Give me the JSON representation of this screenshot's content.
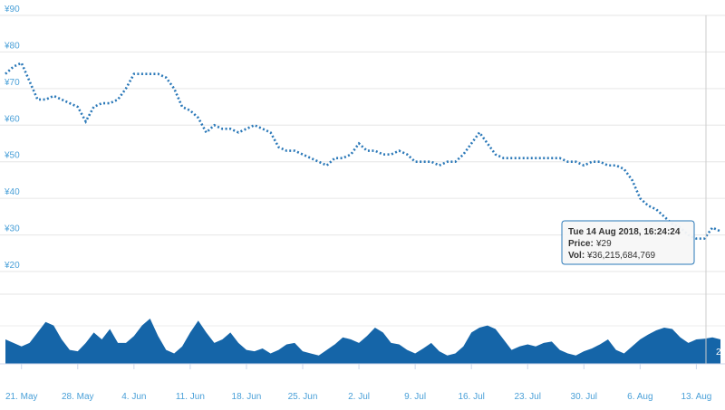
{
  "chart_data": {
    "type": "price-volume",
    "x": [
      "2018-05-19",
      "2018-05-20",
      "2018-05-21",
      "2018-05-22",
      "2018-05-23",
      "2018-05-24",
      "2018-05-25",
      "2018-05-26",
      "2018-05-27",
      "2018-05-28",
      "2018-05-29",
      "2018-05-30",
      "2018-05-31",
      "2018-06-01",
      "2018-06-02",
      "2018-06-03",
      "2018-06-04",
      "2018-06-05",
      "2018-06-06",
      "2018-06-07",
      "2018-06-08",
      "2018-06-09",
      "2018-06-10",
      "2018-06-11",
      "2018-06-12",
      "2018-06-13",
      "2018-06-14",
      "2018-06-15",
      "2018-06-16",
      "2018-06-17",
      "2018-06-18",
      "2018-06-19",
      "2018-06-20",
      "2018-06-21",
      "2018-06-22",
      "2018-06-23",
      "2018-06-24",
      "2018-06-25",
      "2018-06-26",
      "2018-06-27",
      "2018-06-28",
      "2018-06-29",
      "2018-06-30",
      "2018-07-01",
      "2018-07-02",
      "2018-07-03",
      "2018-07-04",
      "2018-07-05",
      "2018-07-06",
      "2018-07-07",
      "2018-07-08",
      "2018-07-09",
      "2018-07-10",
      "2018-07-11",
      "2018-07-12",
      "2018-07-13",
      "2018-07-14",
      "2018-07-15",
      "2018-07-16",
      "2018-07-17",
      "2018-07-18",
      "2018-07-19",
      "2018-07-20",
      "2018-07-21",
      "2018-07-22",
      "2018-07-23",
      "2018-07-24",
      "2018-07-25",
      "2018-07-26",
      "2018-07-27",
      "2018-07-28",
      "2018-07-29",
      "2018-07-30",
      "2018-07-31",
      "2018-08-01",
      "2018-08-02",
      "2018-08-03",
      "2018-08-04",
      "2018-08-05",
      "2018-08-06",
      "2018-08-07",
      "2018-08-08",
      "2018-08-09",
      "2018-08-10",
      "2018-08-11",
      "2018-08-12",
      "2018-08-13",
      "2018-08-14",
      "2018-08-15",
      "2018-08-16"
    ],
    "series": [
      {
        "name": "Price",
        "color": "#2a78b8",
        "values": [
          74,
          76,
          77,
          72,
          67,
          67,
          68,
          67,
          66,
          65,
          61,
          65,
          66,
          66,
          67,
          70,
          74,
          74,
          74,
          74,
          73,
          70,
          65,
          64,
          62,
          58,
          60,
          59,
          59,
          58,
          59,
          60,
          59,
          58,
          54,
          53,
          53,
          52,
          51,
          50,
          49,
          51,
          51,
          52,
          55,
          53,
          53,
          52,
          52,
          53,
          52,
          50,
          50,
          50,
          49,
          50,
          50,
          52,
          55,
          58,
          55,
          52,
          51,
          51,
          51,
          51,
          51,
          51,
          51,
          51,
          50,
          50,
          49,
          50,
          50,
          49,
          49,
          48,
          45,
          40,
          38,
          37,
          35,
          33,
          32,
          30,
          29,
          29,
          32,
          31
        ]
      },
      {
        "name": "Vol",
        "color": "#1565a8",
        "axis": "y2",
        "values": [
          35000000000,
          30000000000,
          25000000000,
          30000000000,
          45000000000,
          60000000000,
          55000000000,
          35000000000,
          20000000000,
          18000000000,
          30000000000,
          45000000000,
          35000000000,
          50000000000,
          30000000000,
          30000000000,
          40000000000,
          55000000000,
          65000000000,
          40000000000,
          20000000000,
          15000000000,
          25000000000,
          45000000000,
          62000000000,
          45000000000,
          30000000000,
          35000000000,
          45000000000,
          30000000000,
          20000000000,
          18000000000,
          22000000000,
          15000000000,
          20000000000,
          28000000000,
          30000000000,
          18000000000,
          15000000000,
          12000000000,
          20000000000,
          28000000000,
          38000000000,
          35000000000,
          30000000000,
          40000000000,
          52000000000,
          45000000000,
          30000000000,
          28000000000,
          20000000000,
          15000000000,
          22000000000,
          30000000000,
          18000000000,
          12000000000,
          15000000000,
          25000000000,
          45000000000,
          52000000000,
          55000000000,
          50000000000,
          35000000000,
          20000000000,
          25000000000,
          28000000000,
          25000000000,
          30000000000,
          32000000000,
          20000000000,
          15000000000,
          12000000000,
          18000000000,
          22000000000,
          28000000000,
          35000000000,
          20000000000,
          15000000000,
          25000000000,
          35000000000,
          42000000000,
          48000000000,
          52000000000,
          50000000000,
          38000000000,
          30000000000,
          35000000000,
          36000000000,
          38000000000,
          35000000000
        ]
      }
    ],
    "xlim": [
      "2018-05-19",
      "2018-08-16"
    ],
    "xticks": [
      {
        "value": "2018-05-21",
        "label": "21. May"
      },
      {
        "value": "2018-05-28",
        "label": "28. May"
      },
      {
        "value": "2018-06-04",
        "label": "4. Jun"
      },
      {
        "value": "2018-06-11",
        "label": "11. Jun"
      },
      {
        "value": "2018-06-18",
        "label": "18. Jun"
      },
      {
        "value": "2018-06-25",
        "label": "25. Jun"
      },
      {
        "value": "2018-07-02",
        "label": "2. Jul"
      },
      {
        "value": "2018-07-09",
        "label": "9. Jul"
      },
      {
        "value": "2018-07-16",
        "label": "16. Jul"
      },
      {
        "value": "2018-07-23",
        "label": "23. Jul"
      },
      {
        "value": "2018-07-30",
        "label": "30. Jul"
      },
      {
        "value": "2018-08-06",
        "label": "6. Aug"
      },
      {
        "value": "2018-08-13",
        "label": "13. Aug"
      }
    ],
    "ylim": [
      20,
      90
    ],
    "yticks": [
      {
        "value": 20,
        "label": "¥20"
      },
      {
        "value": 30,
        "label": "¥30"
      },
      {
        "value": 40,
        "label": "¥40"
      },
      {
        "value": 50,
        "label": "¥50"
      },
      {
        "value": 60,
        "label": "¥60"
      },
      {
        "value": 70,
        "label": "¥70"
      },
      {
        "value": 80,
        "label": "¥80"
      },
      {
        "value": 90,
        "label": "¥90"
      }
    ],
    "y2lim": [
      0,
      100000000000
    ],
    "y2_flag": "2",
    "grid": true,
    "tooltip": {
      "title": "Tue 14 Aug 2018, 16:24:24",
      "price_label": "Price:",
      "price": "¥29",
      "vol_label": "Vol:",
      "vol": "¥36,215,684,769"
    }
  }
}
